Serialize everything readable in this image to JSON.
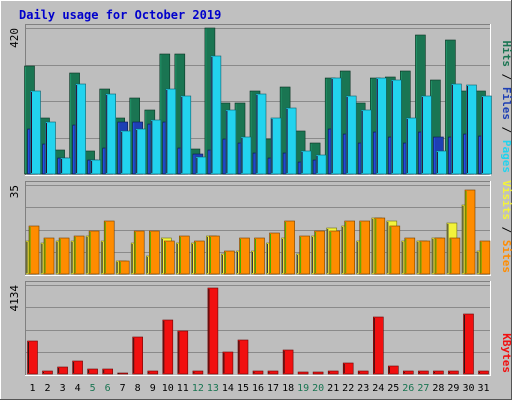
{
  "colors": {
    "background": "#c0c0c0",
    "plot_bg": "#bebebe",
    "title": "#0000cc",
    "hits": "#1a7552",
    "files": "#1e3fb4",
    "pages": "#22d3ee",
    "visits": "#f3f33a",
    "sites": "#ff8c00",
    "kbytes": "#f11010",
    "weekday_label": "#000000",
    "weekend_label": "#1a7552"
  },
  "chart_data": {
    "type": "bar",
    "title": "Daily usage for October 2019",
    "categories": [
      "1",
      "2",
      "3",
      "4",
      "5",
      "6",
      "7",
      "8",
      "9",
      "10",
      "11",
      "12",
      "13",
      "14",
      "15",
      "16",
      "17",
      "18",
      "19",
      "20",
      "21",
      "22",
      "23",
      "24",
      "25",
      "26",
      "27",
      "28",
      "29",
      "30",
      "31"
    ],
    "weekend_days": [
      "5",
      "6",
      "12",
      "13",
      "19",
      "20",
      "26",
      "27"
    ],
    "panels": [
      {
        "name": "hits-files-pages",
        "ymax_label": "420",
        "ylim": [
          0,
          420
        ],
        "series": [
          {
            "name": "Hits",
            "color_key": "hits",
            "values": [
              310,
              160,
              70,
              290,
              65,
              245,
              160,
              220,
              185,
              345,
              345,
              73,
              420,
              205,
              205,
              240,
              100,
              250,
              125,
              90,
              275,
              295,
              205,
              275,
              280,
              295,
              400,
              270,
              385,
              240,
              240
            ]
          },
          {
            "name": "Files",
            "color_key": "files",
            "values": [
              130,
              85,
              45,
              140,
              40,
              75,
              150,
              150,
              145,
              150,
              75,
              58,
              70,
              100,
              90,
              60,
              45,
              60,
              35,
              40,
              130,
              115,
              90,
              120,
              105,
              90,
              120,
              105,
              105,
              115,
              110
            ]
          },
          {
            "name": "Pages",
            "color_key": "pages",
            "values": [
              240,
              150,
              45,
              260,
              40,
              230,
              125,
              130,
              155,
              245,
              225,
              50,
              340,
              185,
              105,
              230,
              160,
              190,
              65,
              55,
              275,
              225,
              185,
              275,
              270,
              160,
              225,
              65,
              260,
              255,
              225
            ]
          }
        ],
        "legend": [
          {
            "text": "Pages",
            "color_key": "pages"
          },
          {
            "text": "Files",
            "color_key": "files"
          },
          {
            "text": "Hits",
            "color_key": "hits"
          }
        ]
      },
      {
        "name": "visits-sites",
        "ymax_label": "35",
        "ylim": [
          0,
          35
        ],
        "series": [
          {
            "name": "Visits",
            "color_key": "visits",
            "values": [
              13,
              12,
              13,
              13,
              15,
              13,
              5,
              12,
              7,
              14,
              12,
              12,
              15,
              8,
              9,
              9,
              12,
              14,
              8,
              15,
              18,
              19,
              13,
              22,
              21,
              13,
              13,
              14,
              20,
              27,
              9
            ]
          },
          {
            "name": "Sites",
            "color_key": "sites",
            "values": [
              19,
              14,
              14,
              15,
              17,
              21,
              5,
              17,
              17,
              13,
              15,
              13,
              15,
              9,
              14,
              14,
              16,
              21,
              15,
              17,
              17,
              21,
              21,
              22,
              19,
              14,
              13,
              14,
              14,
              33,
              13
            ]
          }
        ],
        "legend": [
          {
            "text": "Sites",
            "color_key": "sites"
          },
          {
            "text": "Visits",
            "color_key": "visits"
          }
        ]
      },
      {
        "name": "kbytes",
        "ymax_label": "4134",
        "ylim": [
          0,
          4134
        ],
        "series": [
          {
            "name": "KBytes",
            "color_key": "kbytes",
            "values": [
              1550,
              150,
              340,
              610,
              240,
              250,
              60,
              1720,
              150,
              2510,
              1980,
              140,
              4000,
              1030,
              1590,
              150,
              150,
              1100,
              70,
              70,
              150,
              510,
              150,
              2650,
              370,
              150,
              150,
              150,
              150,
              2800,
              150
            ]
          }
        ],
        "legend": [
          {
            "text": "KBytes",
            "color_key": "kbytes"
          }
        ]
      }
    ]
  }
}
